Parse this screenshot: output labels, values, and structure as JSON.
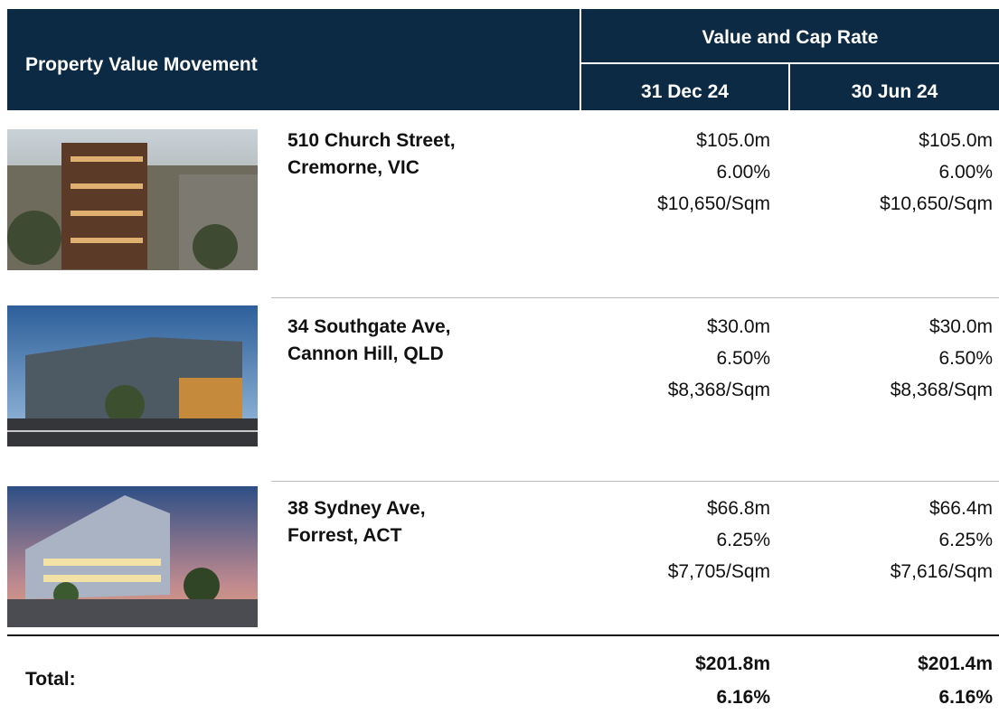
{
  "header": {
    "title": "Property Value Movement",
    "group": "Value and Cap Rate",
    "columns": [
      "31 Dec 24",
      "30 Jun 24"
    ]
  },
  "rows": [
    {
      "address": [
        "510 Church Street,",
        "Cremorne, VIC"
      ],
      "current": [
        "$105.0m",
        "6.00%",
        "$10,650/Sqm"
      ],
      "prior": [
        "$105.0m",
        "6.00%",
        "$10,650/Sqm"
      ]
    },
    {
      "address": [
        "34 Southgate Ave,",
        "Cannon Hill, QLD"
      ],
      "current": [
        "$30.0m",
        "6.50%",
        "$8,368/Sqm"
      ],
      "prior": [
        "$30.0m",
        "6.50%",
        "$8,368/Sqm"
      ]
    },
    {
      "address": [
        "38 Sydney Ave,",
        "Forrest, ACT"
      ],
      "current": [
        "$66.8m",
        "6.25%",
        "$7,705/Sqm"
      ],
      "prior": [
        "$66.4m",
        "6.25%",
        "$7,616/Sqm"
      ]
    }
  ],
  "total": {
    "label": "Total:",
    "current": [
      "$201.8m",
      "6.16%"
    ],
    "prior": [
      "$201.4m",
      "6.16%"
    ]
  }
}
